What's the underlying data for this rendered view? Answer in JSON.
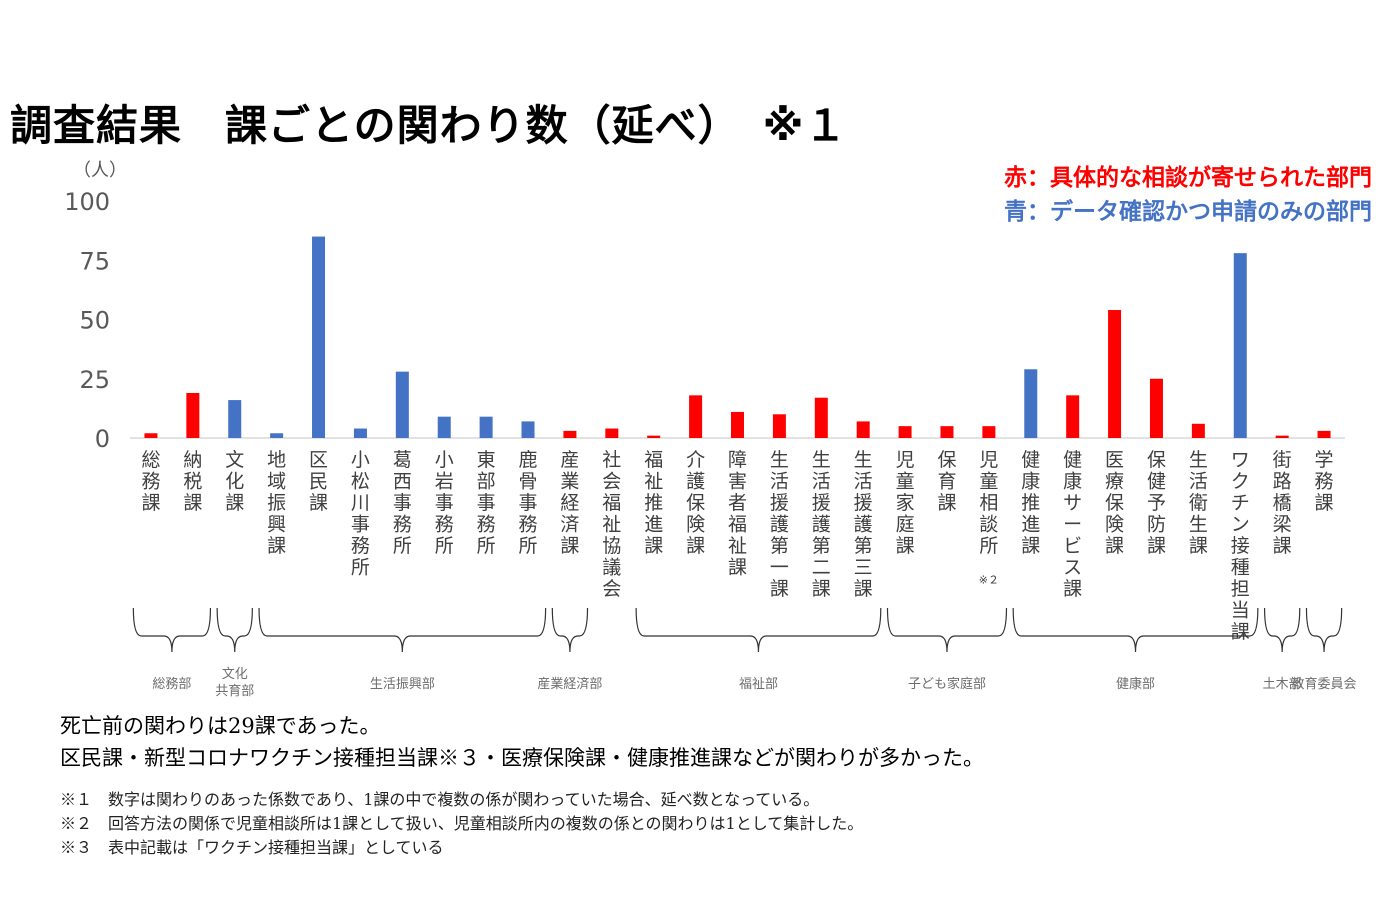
{
  "title": "調査結果　課ごとの関わり数（延べ）　※１",
  "legend": {
    "red_label": "赤：具体的な相談が寄せられた部門",
    "blue_label": "青：データ確認かつ申請のみの部門"
  },
  "colors": {
    "red": "#ff0000",
    "blue": "#4472c4",
    "axis": "#d9d9d9"
  },
  "chart_data": {
    "type": "bar",
    "ylabel": "（人）",
    "ylim": [
      0,
      100
    ],
    "yticks": [
      0,
      25,
      50,
      75,
      100
    ],
    "categories": [
      "総務課",
      "納税課",
      "文化課",
      "地域振興課",
      "区民課",
      "小松川事務所",
      "葛西事務所",
      "小岩事務所",
      "東部事務所",
      "鹿骨事務所",
      "産業経済課",
      "社会福祉協議会",
      "福祉推進課",
      "介護保険課",
      "障害者福祉課",
      "生活援護第一課",
      "生活援護第二課",
      "生活援護第三課",
      "児童家庭課",
      "保育課",
      "児童相談所",
      "健康推進課",
      "健康サービス課",
      "医療保険課",
      "保健予防課",
      "生活衛生課",
      "ワクチン接種担当課",
      "街路橋梁課",
      "学務課"
    ],
    "values": [
      2,
      19,
      16,
      2,
      85,
      4,
      28,
      9,
      9,
      7,
      3,
      4,
      1,
      18,
      11,
      10,
      17,
      7,
      5,
      5,
      5,
      29,
      18,
      54,
      25,
      6,
      78,
      1,
      3
    ],
    "series_colors": [
      "red",
      "red",
      "blue",
      "blue",
      "blue",
      "blue",
      "blue",
      "blue",
      "blue",
      "blue",
      "red",
      "red",
      "red",
      "red",
      "red",
      "red",
      "red",
      "red",
      "red",
      "red",
      "red",
      "blue",
      "red",
      "red",
      "red",
      "red",
      "blue",
      "red",
      "red"
    ],
    "annotations": [
      {
        "category": "児童相談所",
        "text": "※２"
      }
    ],
    "groups": [
      {
        "name": "総務部",
        "from": 0,
        "to": 1
      },
      {
        "name": "文化\n共育部",
        "from": 2,
        "to": 2
      },
      {
        "name": "生活振興部",
        "from": 3,
        "to": 9
      },
      {
        "name": "産業経済部",
        "from": 10,
        "to": 10
      },
      {
        "name": "福祉部",
        "from": 12,
        "to": 17
      },
      {
        "name": "子ども家庭部",
        "from": 18,
        "to": 20
      },
      {
        "name": "健康部",
        "from": 21,
        "to": 26
      },
      {
        "name": "土木部",
        "from": 27,
        "to": 27
      },
      {
        "name": "教育委員会",
        "from": 28,
        "to": 28
      }
    ]
  },
  "notes": {
    "line1": "死亡前の関わりは29課であった。",
    "line2": "区民課・新型コロナワクチン接種担当課※３・医療保険課・健康推進課などが関わりが多かった。",
    "fn1": "※１　数字は関わりのあった係数であり、1課の中で複数の係が関わっていた場合、延べ数となっている。",
    "fn2": "※２　回答方法の関係で児童相談所は1課として扱い、児童相談所内の複数の係との関わりは1として集計した。",
    "fn3": "※３　表中記載は「ワクチン接種担当課」としている"
  }
}
